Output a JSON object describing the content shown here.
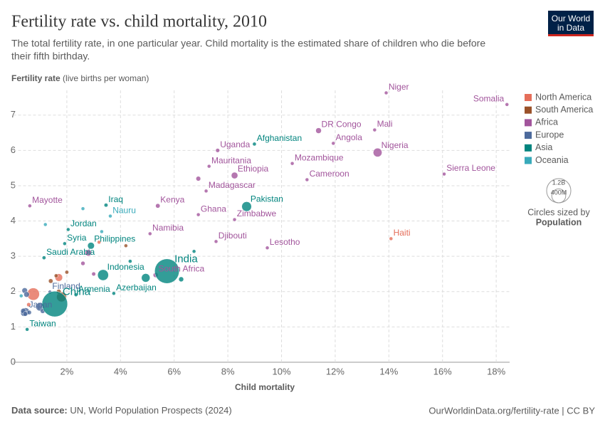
{
  "header": {
    "logo_line1": "Our World",
    "logo_line2": "in Data"
  },
  "chart_data": {
    "type": "scatter",
    "title": "Fertility rate vs. child mortality, 2010",
    "subtitle_line1": "The total fertility rate, in one particular year. Child mortality is the estimated share of children who die before",
    "subtitle_line2": "their fifth birthday.",
    "y_label": "Fertility rate",
    "y_label_unit": "(live births per woman)",
    "x_label": "Child mortality",
    "xlim": [
      0,
      18.5
    ],
    "xticks": [
      {
        "value": 2,
        "label": "2%"
      },
      {
        "value": 4,
        "label": "4%"
      },
      {
        "value": 6,
        "label": "6%"
      },
      {
        "value": 8,
        "label": "8%"
      },
      {
        "value": 10,
        "label": "10%"
      },
      {
        "value": 12,
        "label": "12%"
      },
      {
        "value": 14,
        "label": "14%"
      },
      {
        "value": 16,
        "label": "16%"
      },
      {
        "value": 18,
        "label": "18%"
      }
    ],
    "ylim": [
      0,
      7.7
    ],
    "yticks": [
      0,
      1,
      2,
      3,
      4,
      5,
      6,
      7
    ],
    "grid": true,
    "legend_position": "right",
    "size_legend": {
      "title": "Circles sized by",
      "variable": "Population",
      "sizes": [
        {
          "value": 1200,
          "label": "1.2B"
        },
        {
          "value": 400,
          "label": "400M"
        }
      ]
    },
    "series": [
      {
        "name": "North America",
        "color": "#e56e5a",
        "x": [
          14.08,
          0.75,
          1.7,
          3.2,
          0.58
        ],
        "values": [
          3.5,
          1.93,
          2.4,
          3.4,
          1.63
        ],
        "sizes": [
          10,
          309,
          117,
          14,
          34
        ],
        "labels": [
          "Haiti",
          null,
          null,
          null,
          null
        ]
      },
      {
        "name": "South America",
        "color": "#9a5129",
        "x": [
          1.8,
          1.7,
          1.4,
          2.0,
          1.6,
          4.2
        ],
        "values": [
          1.85,
          2.0,
          2.3,
          2.55,
          2.45,
          3.3
        ],
        "sizes": [
          196,
          45,
          41,
          29,
          29,
          10
        ],
        "labels": [
          null,
          null,
          null,
          null,
          null,
          null
        ]
      },
      {
        "name": "Africa",
        "color": "#a2559c",
        "x": [
          13.9,
          18.4,
          13.47,
          11.38,
          11.93,
          13.58,
          7.62,
          10.4,
          8.25,
          7.3,
          10.95,
          16.06,
          7.19,
          5.39,
          6.9,
          8.25,
          5.1,
          7.56,
          9.47,
          5.31,
          0.62,
          6.9,
          2.8,
          2.6,
          3.0
        ],
        "values": [
          7.63,
          7.3,
          6.58,
          6.56,
          6.2,
          5.94,
          6.0,
          5.63,
          5.29,
          5.55,
          5.17,
          5.33,
          4.85,
          4.43,
          4.18,
          4.04,
          3.64,
          3.42,
          3.24,
          2.47,
          4.43,
          5.2,
          3.1,
          2.8,
          2.5
        ],
        "sizes": [
          17,
          12,
          15,
          66,
          23,
          158,
          33,
          24,
          87,
          4,
          20,
          6,
          21,
          41,
          24,
          13,
          2,
          0.8,
          2,
          51,
          0.2,
          45,
          82,
          36,
          32
        ],
        "labels": [
          "Niger",
          "Somalia",
          "Mali",
          "DR Congo",
          "Angola",
          "Nigeria",
          "Uganda",
          "Mozambique",
          "Ethiopia",
          "Mauritania",
          "Cameroon",
          "Sierra Leone",
          "Madagascar",
          "Kenya",
          "Ghana",
          "Zimbabwe",
          "Namibia",
          "Djibouti",
          "Lesotho",
          "South Africa",
          "Mayotte",
          null,
          null,
          null,
          null
        ]
      },
      {
        "name": "Europe",
        "color": "#4c6a9c",
        "x": [
          1.37,
          0.46,
          0.4,
          0.43,
          0.5,
          1.0,
          0.38,
          0.45,
          0.6,
          1.1
        ],
        "values": [
          1.99,
          1.43,
          1.39,
          2.03,
          1.92,
          1.57,
          1.45,
          1.37,
          1.41,
          1.45
        ],
        "sizes": [
          5,
          128,
          81,
          63,
          63,
          143,
          60,
          46,
          38,
          46
        ],
        "labels": [
          "Finland",
          "Japan",
          null,
          null,
          null,
          null,
          null,
          null,
          null,
          null
        ]
      },
      {
        "name": "Asia",
        "color": "#00847e",
        "x": [
          8.99,
          8.7,
          3.46,
          2.05,
          1.92,
          2.9,
          1.15,
          3.35,
          5.73,
          3.75,
          1.55,
          2.34,
          0.52,
          4.94,
          6.26,
          4.36,
          6.74
        ],
        "values": [
          6.18,
          4.41,
          4.45,
          3.76,
          3.36,
          3.3,
          2.96,
          2.47,
          2.58,
          1.95,
          1.65,
          1.91,
          0.93,
          2.39,
          2.35,
          2.86,
          3.14
        ],
        "sizes": [
          28,
          194,
          30,
          7,
          21,
          94,
          28,
          242,
          1234,
          9,
          1338,
          3,
          23,
          150,
          50,
          27,
          14
        ],
        "labels": [
          "Afghanistan",
          "Pakistan",
          "Iraq",
          "Jordan",
          "Syria",
          "Philippines",
          "Saudi Arabia",
          "Indonesia",
          "India",
          "Azerbaijan",
          "China",
          "Armenia",
          "Taiwan",
          null,
          null,
          null,
          null
        ]
      },
      {
        "name": "Oceania",
        "color": "#38aaba",
        "x": [
          3.62,
          0.3,
          1.2,
          2.6,
          3.3
        ],
        "values": [
          4.14,
          1.88,
          3.9,
          4.35,
          3.7
        ],
        "sizes": [
          0.01,
          22,
          0.1,
          7,
          0.5
        ],
        "labels": [
          "Nauru",
          null,
          null,
          null,
          null
        ]
      }
    ]
  },
  "footer": {
    "source_label": "Data source:",
    "source": "UN, World Population Prospects (2024)",
    "url": "OurWorldinData.org/fertility-rate | CC BY"
  }
}
